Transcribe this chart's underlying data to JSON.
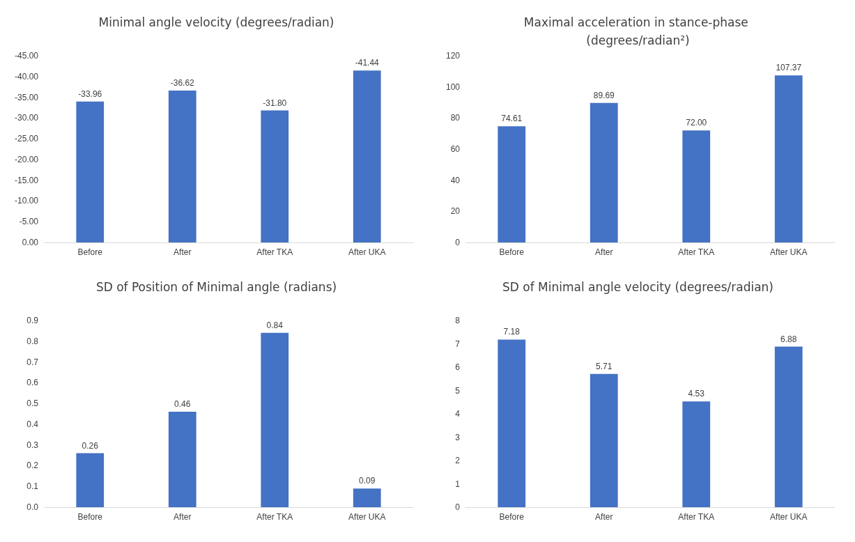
{
  "chart_data": [
    {
      "type": "bar",
      "title": "Minimal angle velocity (degrees/radian)",
      "categories": [
        "Before",
        "After",
        "After TKA",
        "After UKA"
      ],
      "values": [
        -33.96,
        -36.62,
        -31.8,
        -41.44
      ],
      "value_labels": [
        "-33.96",
        "-36.62",
        "-31.80",
        "-41.44"
      ],
      "color": "#4472c4",
      "ylim": [
        0,
        -45
      ],
      "yticks": [
        {
          "value": 0,
          "label": "0.00"
        },
        {
          "value": -5,
          "label": "-5.00"
        },
        {
          "value": -10,
          "label": "-10.00"
        },
        {
          "value": -15,
          "label": "-15.00"
        },
        {
          "value": -20,
          "label": "-20.00"
        },
        {
          "value": -25,
          "label": "-25.00"
        },
        {
          "value": -30,
          "label": "-30.00"
        },
        {
          "value": -35,
          "label": "-35.00"
        },
        {
          "value": -40,
          "label": "-40.00"
        },
        {
          "value": -45,
          "label": "-45.00"
        }
      ]
    },
    {
      "type": "bar",
      "title": "Maximal acceleration in stance-phase (degrees/radian²)",
      "categories": [
        "Before",
        "After",
        "After TKA",
        "After UKA"
      ],
      "values": [
        74.61,
        89.69,
        72.0,
        107.37
      ],
      "value_labels": [
        "74.61",
        "89.69",
        "72.00",
        "107.37"
      ],
      "color": "#4472c4",
      "ylim": [
        0,
        120
      ],
      "yticks": [
        0,
        20,
        40,
        60,
        80,
        100,
        120
      ]
    },
    {
      "type": "bar",
      "title": "SD of Position of Minimal angle (radians)",
      "categories": [
        "Before",
        "After",
        "After TKA",
        "After UKA"
      ],
      "values": [
        0.26,
        0.46,
        0.84,
        0.09
      ],
      "value_labels": [
        "0.26",
        "0.46",
        "0.84",
        "0.09"
      ],
      "color": "#4472c4",
      "ylim": [
        0,
        0.9
      ],
      "yticks": [
        {
          "value": 0,
          "label": "0.0"
        },
        0.1,
        0.2,
        0.3,
        0.4,
        0.5,
        0.6,
        0.7,
        0.8,
        0.9
      ]
    },
    {
      "type": "bar",
      "title": "SD of Minimal angle velocity (degrees/radian)",
      "categories": [
        "Before",
        "After",
        "After TKA",
        "After UKA"
      ],
      "values": [
        7.18,
        5.71,
        4.53,
        6.88
      ],
      "value_labels": [
        "7.18",
        "5.71",
        "4.53",
        "6.88"
      ],
      "color": "#4472c4",
      "ylim": [
        0,
        8
      ],
      "yticks": [
        0,
        1,
        2,
        3,
        4,
        5,
        6,
        7,
        8
      ]
    }
  ]
}
